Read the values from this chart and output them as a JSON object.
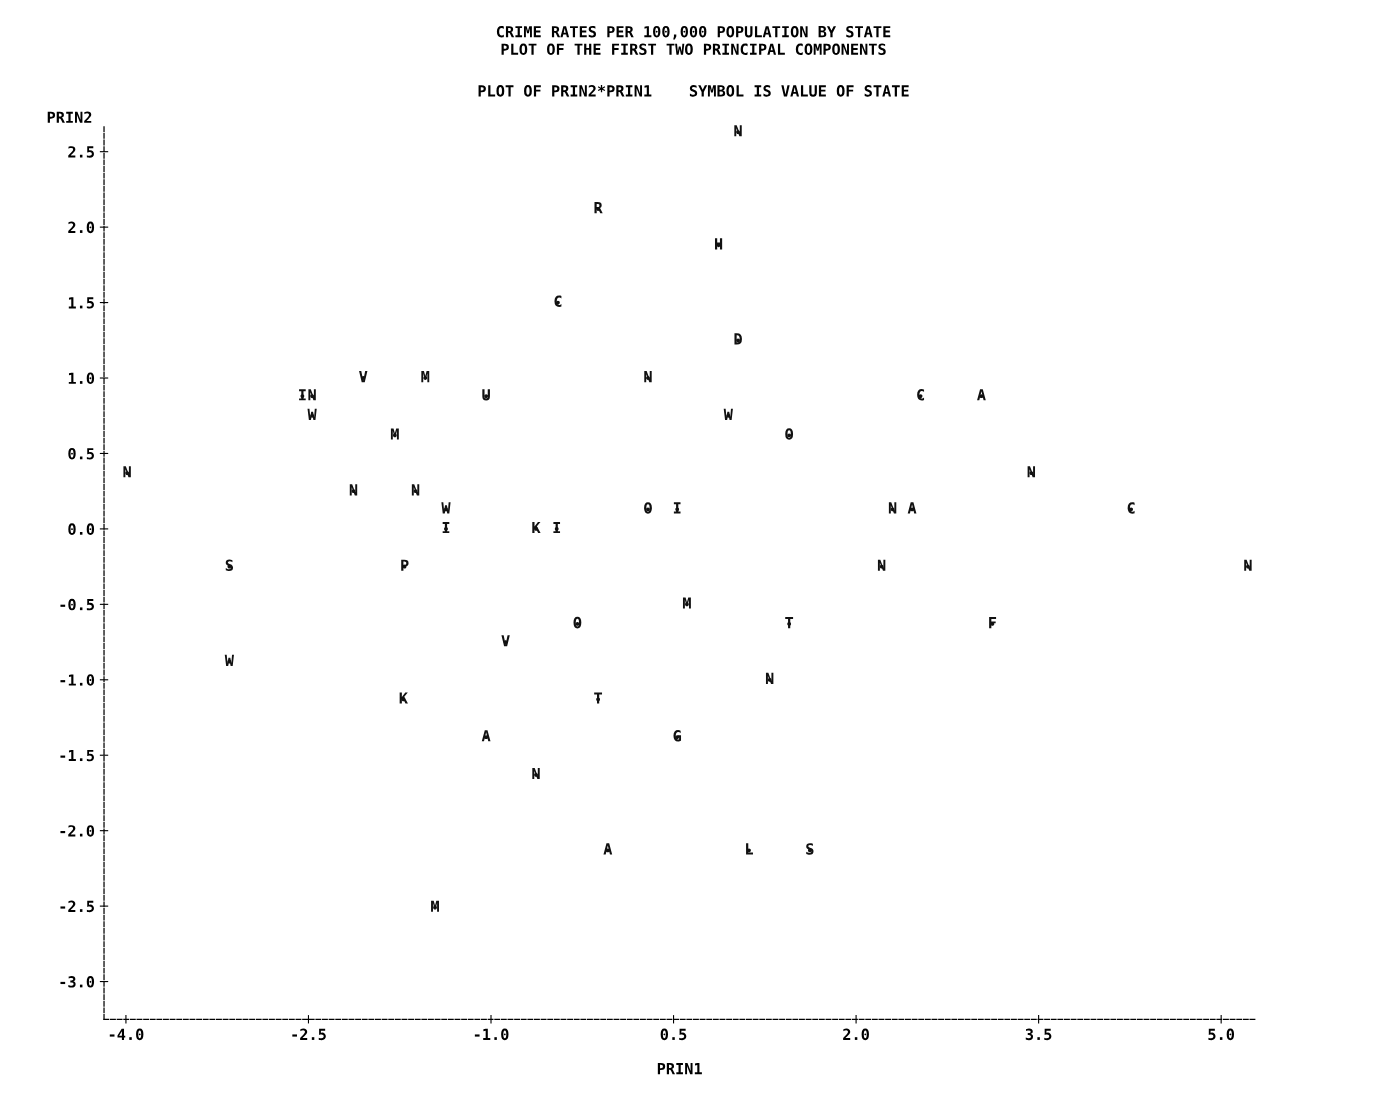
{
  "chart_data": {
    "type": "scatter",
    "title": "CRIME RATES PER 100,000 POPULATION BY STATE",
    "subtitle": "PLOT OF THE FIRST TWO PRINCIPAL COMPONENTS",
    "annotations": [
      "PLOT OF PRIN2*PRIN1    SYMBOL IS VALUE OF STATE"
    ],
    "xlabel": "PRIN1",
    "ylabel": "PRIN2",
    "x": [
      1.03,
      -0.12,
      0.87,
      -0.45,
      1.03,
      -2.05,
      -1.54,
      0.29,
      -2.55,
      -2.47,
      -1.04,
      2.53,
      3.03,
      -2.47,
      0.95,
      -1.79,
      1.45,
      -3.99,
      3.44,
      -2.13,
      -1.62,
      -1.37,
      0.29,
      0.53,
      2.3,
      2.46,
      4.26,
      -1.37,
      -0.63,
      -0.46,
      -3.15,
      -1.71,
      2.21,
      5.22,
      0.61,
      -0.29,
      1.45,
      3.12,
      -0.88,
      -3.15,
      1.29,
      -1.72,
      -0.12,
      -1.04,
      0.53,
      -0.63,
      -0.04,
      1.12,
      1.62,
      -1.46
    ],
    "values": [
      2.63,
      2.12,
      1.88,
      1.5,
      1.25,
      1.0,
      1.0,
      1.0,
      0.88,
      0.88,
      0.88,
      0.88,
      0.88,
      0.75,
      0.75,
      0.62,
      0.62,
      0.37,
      0.37,
      0.25,
      0.25,
      0.13,
      0.13,
      0.13,
      0.13,
      0.13,
      0.13,
      0.0,
      0.0,
      0.0,
      -0.25,
      -0.25,
      -0.25,
      -0.25,
      -0.5,
      -0.63,
      -0.63,
      -0.63,
      -0.75,
      -0.88,
      -1.0,
      -1.13,
      -1.13,
      -1.38,
      -1.38,
      -1.63,
      -2.13,
      -2.13,
      -2.13,
      -2.51
    ],
    "value_labels": [
      "N",
      "R",
      "H",
      "C",
      "D",
      "V",
      "M",
      "N",
      "I",
      "N",
      "U",
      "C",
      "A",
      "W",
      "W",
      "M",
      "O",
      "N",
      "N",
      "N",
      "N",
      "W",
      "O",
      "I",
      "N",
      "A",
      "C",
      "I",
      "K",
      "I",
      "S",
      "P",
      "N",
      "N",
      "M",
      "O",
      "T",
      "F",
      "V",
      "W",
      "N",
      "K",
      "T",
      "A",
      "G",
      "N",
      "A",
      "L",
      "S",
      "M"
    ],
    "color": "#111111",
    "marker": "circle",
    "grid": false,
    "line_style": "dashed",
    "xlim": [
      -4.18,
      5.28
    ],
    "ylim": [
      -3.25,
      2.67
    ],
    "xticks": [
      {
        "value": -4,
        "label": "-4.0"
      },
      -2.5,
      {
        "value": -1,
        "label": "-1.0"
      },
      0.5,
      {
        "value": 2,
        "label": "2.0"
      },
      3.5,
      {
        "value": 5,
        "label": "5.0"
      }
    ],
    "yticks": [
      {
        "value": -3,
        "label": "-3.0"
      },
      -2.5,
      {
        "value": -2,
        "label": "-2.0"
      },
      -1.5,
      {
        "value": -1,
        "label": "-1.0"
      },
      -0.5,
      {
        "value": 0,
        "label": "0.0"
      },
      0.5,
      {
        "value": 1,
        "label": "1.0"
      },
      1.5,
      {
        "value": 2,
        "label": "2.0"
      },
      2.5
    ]
  }
}
